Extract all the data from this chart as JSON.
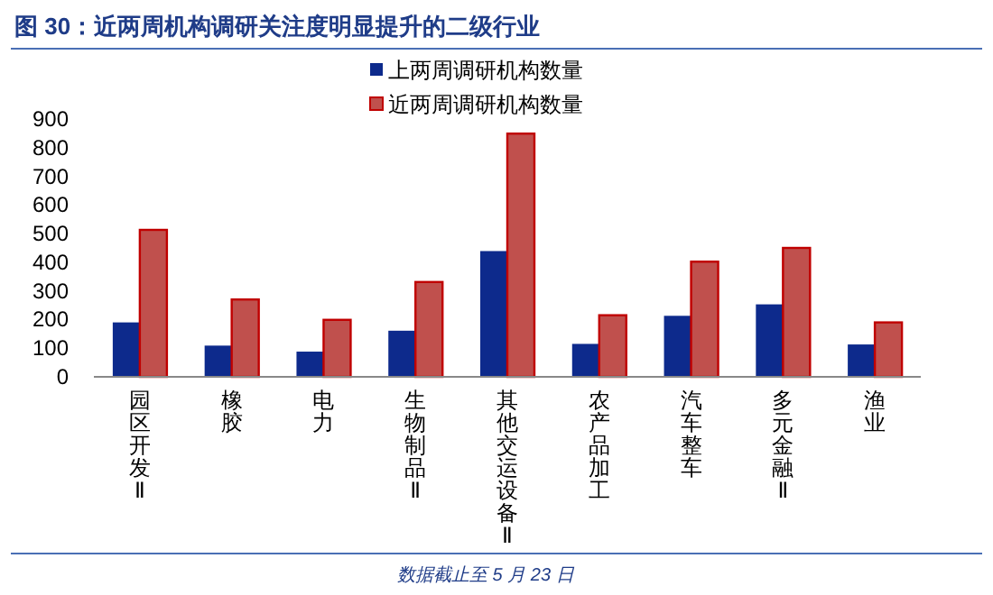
{
  "chart_data": {
    "type": "bar",
    "title": "图 30：近两周机构调研关注度明显提升的二级行业",
    "categories": [
      "园区开发Ⅱ",
      "橡胶",
      "电力",
      "生物制品Ⅱ",
      "其他交运设备Ⅱ",
      "农产品加工",
      "汽车整车",
      "多元金融Ⅱ",
      "渔业"
    ],
    "series": [
      {
        "name": "上两周调研机构数量",
        "color": "#0d2a8c",
        "values": [
          190,
          109,
          88,
          161,
          439,
          115,
          213,
          253,
          113
        ]
      },
      {
        "name": "近两周调研机构数量",
        "color": "#c0504d",
        "values": [
          513,
          270,
          199,
          331,
          849,
          215,
          402,
          450,
          190
        ]
      }
    ],
    "ylim": [
      0,
      900
    ],
    "yticks": [
      0,
      100,
      200,
      300,
      400,
      500,
      600,
      700,
      800,
      900
    ],
    "legend": "top",
    "annotations": [
      "数据截止至 5 月 23 日"
    ]
  }
}
